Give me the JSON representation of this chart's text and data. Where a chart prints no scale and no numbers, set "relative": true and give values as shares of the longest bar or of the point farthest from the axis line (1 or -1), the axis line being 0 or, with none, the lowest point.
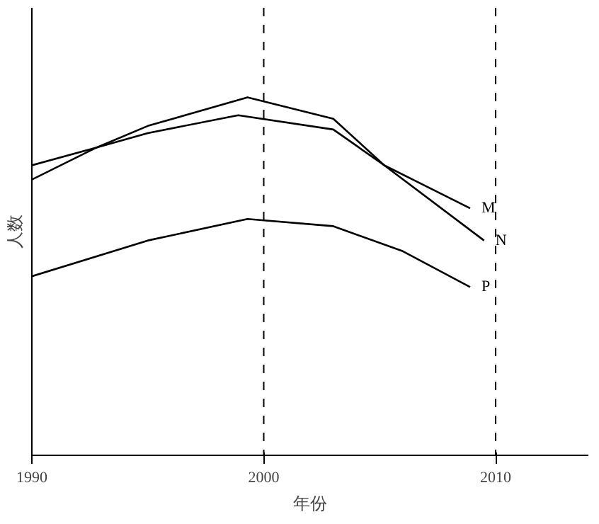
{
  "chart_data": {
    "type": "line",
    "relative": true,
    "xlabel": "年份",
    "ylabel": "人数",
    "xlim": [
      1990,
      2014
    ],
    "xticks": [
      1990,
      2000,
      2010
    ],
    "grid": false,
    "marker": "none",
    "line_style": "solid",
    "ref_lines": [
      {
        "axis": "x",
        "value": 2000,
        "line_style": "dashed",
        "color": "#000000"
      },
      {
        "axis": "x",
        "value": 2010,
        "line_style": "dashed",
        "color": "#000000"
      }
    ],
    "series": [
      {
        "name": "M",
        "color": "#000000",
        "x": [
          1990,
          1992.8,
          1995,
          1998.9,
          2003,
          2005.2,
          2008.9
        ],
        "values": [
          0.81,
          0.86,
          0.9,
          0.95,
          0.91,
          0.81,
          0.69
        ]
      },
      {
        "name": "N",
        "color": "#000000",
        "x": [
          1990,
          1992.8,
          1995,
          1999.3,
          2003,
          2005.2,
          2009.5
        ],
        "values": [
          0.77,
          0.86,
          0.92,
          1.0,
          0.94,
          0.81,
          0.6
        ]
      },
      {
        "name": "P",
        "color": "#000000",
        "x": [
          1990,
          1995,
          1999.3,
          2003,
          2006,
          2008.9
        ],
        "values": [
          0.5,
          0.6,
          0.66,
          0.64,
          0.57,
          0.47
        ]
      }
    ]
  }
}
